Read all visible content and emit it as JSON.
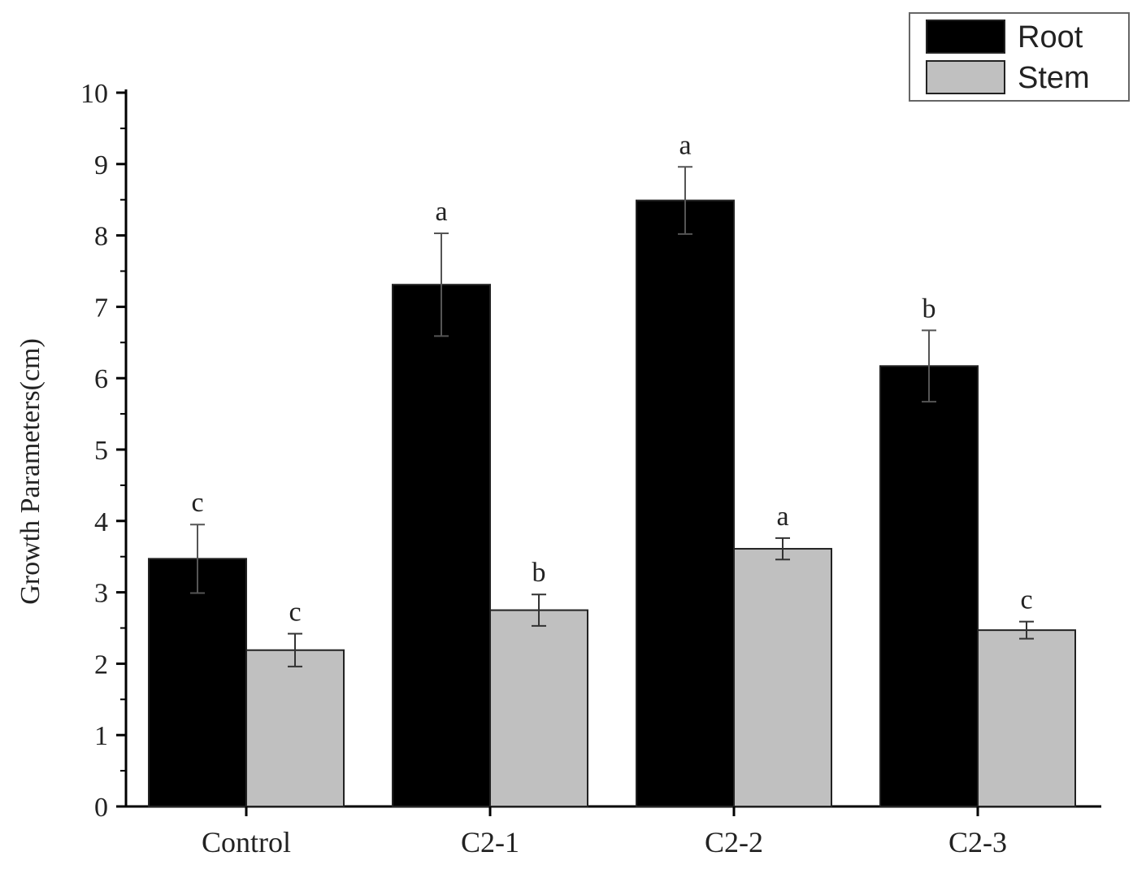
{
  "chart_data": {
    "type": "bar",
    "title": "",
    "xlabel": "",
    "ylabel": "Growth Parameters(cm)",
    "ylim": [
      0,
      10
    ],
    "y_ticks": [
      0,
      1,
      2,
      3,
      4,
      5,
      6,
      7,
      8,
      9,
      10
    ],
    "categories": [
      "Control",
      "C2-1",
      "C2-2",
      "C2-3"
    ],
    "legend_position": "top-right",
    "grid": false,
    "series": [
      {
        "name": "Root",
        "color": "#000000",
        "values": [
          3.47,
          7.31,
          8.49,
          6.17
        ],
        "errors": [
          0.48,
          0.72,
          0.47,
          0.5
        ],
        "significance": [
          "c",
          "a",
          "a",
          "b"
        ]
      },
      {
        "name": "Stem",
        "color": "#c0c0c0",
        "values": [
          2.19,
          2.75,
          3.61,
          2.47
        ],
        "errors": [
          0.23,
          0.22,
          0.15,
          0.12
        ],
        "significance": [
          "c",
          "b",
          "a",
          "c"
        ]
      }
    ]
  }
}
